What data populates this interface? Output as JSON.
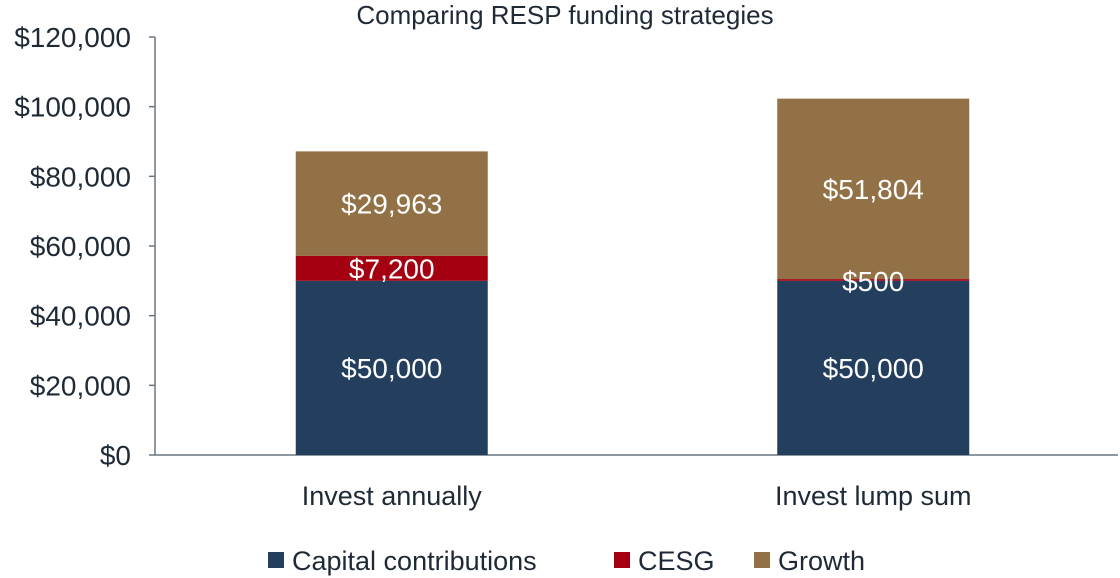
{
  "chart_data": {
    "type": "bar",
    "stacked": true,
    "title": "Comparing RESP funding strategies",
    "categories": [
      "Invest annually",
      "Invest lump sum"
    ],
    "series": [
      {
        "name": "Capital contributions",
        "color": "#243f5e",
        "values": [
          50000,
          50000
        ],
        "labels": [
          "$50,000",
          "$50,000"
        ]
      },
      {
        "name": "CESG",
        "color": "#a50011",
        "values": [
          7200,
          500
        ],
        "labels": [
          "$7,200",
          "$500"
        ]
      },
      {
        "name": "Growth",
        "color": "#927146",
        "values": [
          29963,
          51804
        ],
        "labels": [
          "$29,963",
          "$51,804"
        ]
      }
    ],
    "ylim": [
      0,
      120000
    ],
    "yticks": [
      0,
      20000,
      40000,
      60000,
      80000,
      100000,
      120000
    ],
    "ytick_labels": [
      "$0",
      "$20,000",
      "$40,000",
      "$60,000",
      "$80,000",
      "$100,000",
      "$120,000"
    ],
    "xlabel": "",
    "ylabel": "",
    "grid": false,
    "legend_position": "bottom"
  }
}
